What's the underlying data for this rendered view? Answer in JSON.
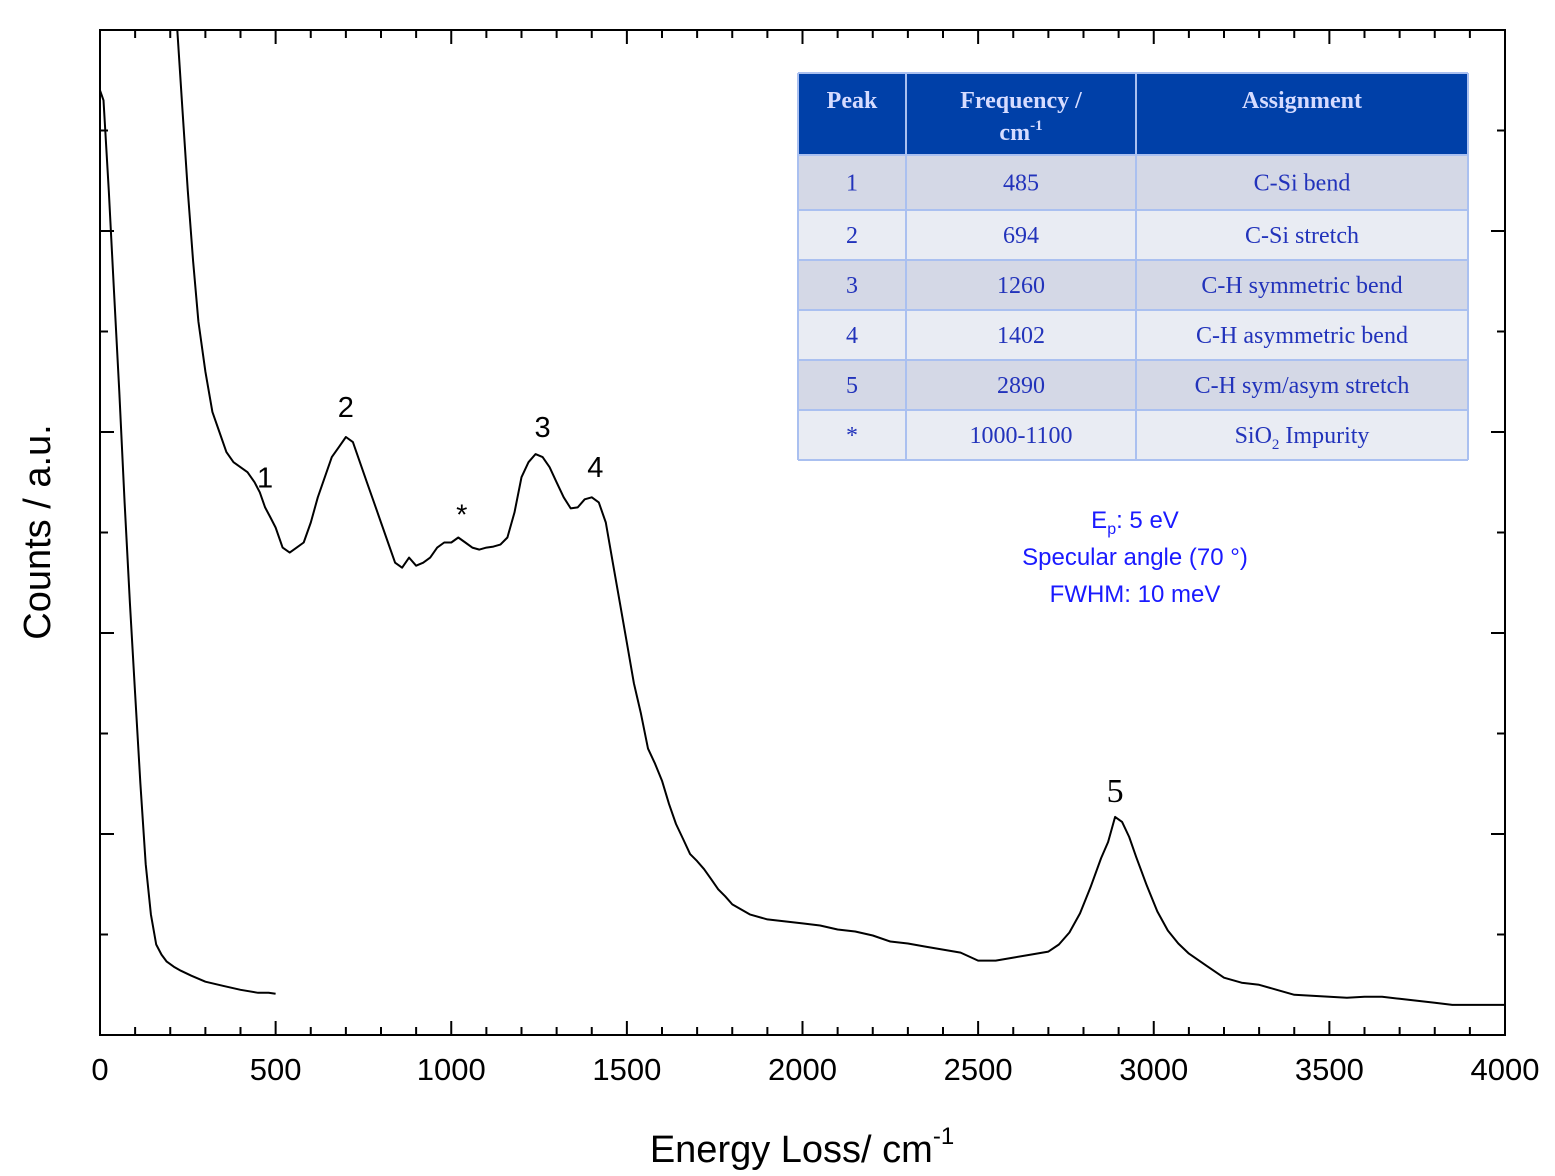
{
  "chart_data": {
    "type": "line",
    "xlabel": "Energy Loss/ cm",
    "xlabel_sup": "-1",
    "ylabel": "Counts / a.u.",
    "xlim": [
      0,
      4000
    ],
    "ylim": [
      0,
      100
    ],
    "x_ticks": [
      "0",
      "500",
      "1000",
      "1500",
      "2000",
      "2500",
      "3000",
      "3500",
      "4000"
    ],
    "grid": false,
    "series": [
      {
        "x": [
          0,
          10,
          25,
          40,
          55,
          70,
          85,
          100,
          115,
          130,
          145,
          160,
          175,
          190,
          210,
          230,
          260,
          300,
          350,
          400,
          450,
          480,
          500
        ],
        "y": [
          94,
          93,
          84,
          74,
          64,
          53,
          43,
          34,
          25,
          17,
          12,
          9,
          8,
          7.3,
          6.8,
          6.4,
          5.9,
          5.3,
          4.9,
          4.5,
          4.2,
          4.2,
          4.1
        ]
      },
      {
        "x": [
          220,
          235,
          250,
          265,
          280,
          300,
          320,
          340,
          360,
          380,
          400,
          420,
          440,
          455,
          470,
          485,
          500,
          520,
          540,
          560,
          580,
          600,
          620,
          640,
          660,
          680,
          700,
          720,
          740,
          760,
          780,
          800,
          820,
          840,
          860,
          880,
          900,
          920,
          940,
          960,
          980,
          1000,
          1020,
          1040,
          1060,
          1080,
          1100,
          1120,
          1140,
          1160,
          1180,
          1200,
          1220,
          1240,
          1260,
          1280,
          1300,
          1320,
          1340,
          1360,
          1380,
          1400,
          1420,
          1440,
          1460,
          1480,
          1500,
          1520,
          1540,
          1560,
          1580,
          1600,
          1620,
          1640,
          1660,
          1680,
          1700,
          1720,
          1740,
          1760,
          1780,
          1800,
          1850,
          1900,
          1950,
          2000,
          2050,
          2100,
          2150,
          2200,
          2250,
          2300,
          2350,
          2400,
          2450,
          2500,
          2550,
          2600,
          2650,
          2700,
          2730,
          2760,
          2790,
          2820,
          2850,
          2870,
          2890,
          2910,
          2930,
          2950,
          2980,
          3010,
          3040,
          3070,
          3100,
          3150,
          3200,
          3250,
          3300,
          3350,
          3400,
          3450,
          3500,
          3550,
          3600,
          3650,
          3700,
          3750,
          3800,
          3850,
          3900,
          3950,
          4000
        ],
        "y": [
          100,
          92,
          84,
          77,
          71,
          66,
          62,
          60,
          58,
          57,
          56.5,
          56,
          55,
          54,
          52.5,
          51.5,
          50.5,
          48.5,
          48,
          48.5,
          49,
          51,
          53.5,
          55.5,
          57.5,
          58.5,
          59.5,
          59,
          57,
          55,
          53,
          51,
          49,
          47,
          46.5,
          47.5,
          46.7,
          47,
          47.5,
          48.5,
          49,
          49,
          49.5,
          49,
          48.5,
          48.3,
          48.5,
          48.6,
          48.8,
          49.5,
          52,
          55.5,
          57,
          57.8,
          57.5,
          56.5,
          55,
          53.5,
          52.4,
          52.5,
          53.3,
          53.5,
          53,
          51,
          47,
          43,
          39,
          35,
          32,
          28.5,
          27,
          25.3,
          23,
          21,
          19.5,
          18,
          17.3,
          16.5,
          15.5,
          14.5,
          13.8,
          13,
          12,
          11.5,
          11.3,
          11.1,
          10.9,
          10.5,
          10.3,
          9.9,
          9.3,
          9.1,
          8.8,
          8.5,
          8.2,
          7.4,
          7.4,
          7.7,
          8.0,
          8.3,
          9.0,
          10.2,
          12.1,
          14.7,
          17.6,
          19.2,
          21.7,
          21.2,
          19.7,
          17.7,
          14.9,
          12.3,
          10.4,
          9.1,
          8.1,
          6.9,
          5.7,
          5.2,
          5.0,
          4.5,
          4.0,
          3.9,
          3.8,
          3.7,
          3.8,
          3.8,
          3.6,
          3.4,
          3.2,
          3.0,
          3.0,
          3.0,
          3.0
        ]
      }
    ],
    "peak_labels": [
      {
        "text": "1",
        "x": 470,
        "y": 54.5
      },
      {
        "text": "2",
        "x": 700,
        "y": 61.5
      },
      {
        "text": "*",
        "x": 1030,
        "y": 50.8
      },
      {
        "text": "3",
        "x": 1260,
        "y": 59.5
      },
      {
        "text": "4",
        "x": 1410,
        "y": 55.5
      },
      {
        "text": "5",
        "x": 2890,
        "y": 23.2
      }
    ],
    "conditions": {
      "line1_main": "E",
      "line1_sub": "p",
      "line1_rest": ": 5 eV",
      "line2": "Specular angle (70 °)",
      "line3": "FWHM: 10 meV"
    },
    "table": {
      "headers": [
        "Peak",
        "Frequency /",
        "Assignment"
      ],
      "header_unit_main": "cm",
      "header_unit_sup": "-1",
      "rows": [
        [
          "1",
          "485",
          "C-Si bend"
        ],
        [
          "2",
          "694",
          "C-Si stretch"
        ],
        [
          "3",
          "1260",
          "C-H symmetric bend"
        ],
        [
          "4",
          "1402",
          "C-H asymmetric bend"
        ],
        [
          "5",
          "2890",
          "C-H sym/asym stretch"
        ],
        [
          "*",
          "1000-1100",
          "SiO"
        ]
      ],
      "last_row_sub": "2",
      "last_row_rest": " Impurity",
      "colors": {
        "header_bg": "#0040a8",
        "row_dark": "#d4d8e6",
        "row_light": "#e9ecf3",
        "border": "#aac0f0"
      }
    }
  }
}
